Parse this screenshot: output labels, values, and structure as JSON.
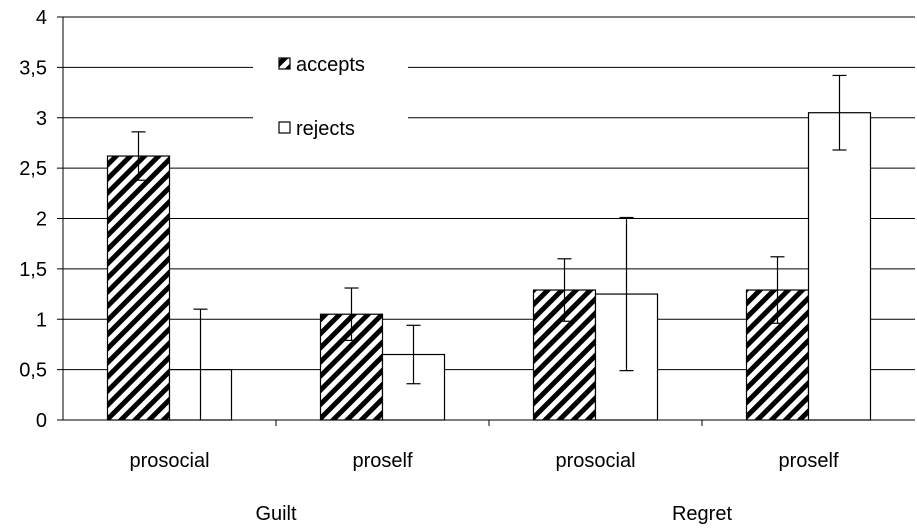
{
  "chart_data": {
    "type": "bar",
    "ylim": [
      0,
      4
    ],
    "yticks": [
      "0",
      "0,5",
      "1",
      "1,5",
      "2",
      "2,5",
      "3",
      "3,5",
      "4"
    ],
    "grid": true,
    "legend_position": "top-center",
    "categories": [
      "prosocial",
      "proself",
      "prosocial",
      "proself"
    ],
    "groups": [
      {
        "label": "Guilt",
        "categories": [
          "prosocial",
          "proself"
        ]
      },
      {
        "label": "Regret",
        "categories": [
          "prosocial",
          "proself"
        ]
      }
    ],
    "series": [
      {
        "name": "accepts",
        "pattern": "diagonal-hatch",
        "values": [
          2.62,
          1.05,
          1.29,
          1.29
        ],
        "errors": [
          0.24,
          0.26,
          0.31,
          0.33
        ]
      },
      {
        "name": "rejects",
        "pattern": "white",
        "values": [
          0.5,
          0.65,
          1.25,
          3.05
        ],
        "errors": [
          0.6,
          0.29,
          0.76,
          0.37
        ]
      }
    ]
  }
}
